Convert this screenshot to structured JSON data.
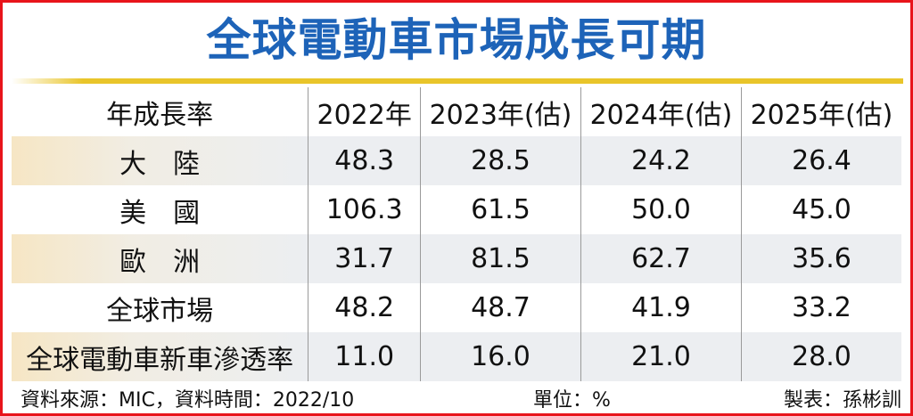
{
  "title": "全球電動車市場成長可期",
  "table": {
    "headers": [
      "年成長率",
      "2022年",
      "2023年(估)",
      "2024年(估)",
      "2025年(估)"
    ],
    "rows": [
      {
        "label": "大　陸",
        "values": [
          "48.3",
          "28.5",
          "24.2",
          "26.4"
        ]
      },
      {
        "label": "美　國",
        "values": [
          "106.3",
          "61.5",
          "50.0",
          "45.0"
        ]
      },
      {
        "label": "歐　洲",
        "values": [
          "31.7",
          "81.5",
          "62.7",
          "35.6"
        ]
      },
      {
        "label": "全球市場",
        "values": [
          "48.2",
          "48.7",
          "41.9",
          "33.2"
        ]
      },
      {
        "label": "全球電動車新車滲透率",
        "values": [
          "11.0",
          "16.0",
          "21.0",
          "28.0"
        ]
      }
    ]
  },
  "footer": {
    "source": "資料來源：MIC，資料時間：2022/10",
    "unit": "單位：%",
    "author": "製表：孫彬訓"
  },
  "colors": {
    "title": "#1d63b8",
    "border": "#e8141b",
    "rule": "#e9c52a"
  }
}
